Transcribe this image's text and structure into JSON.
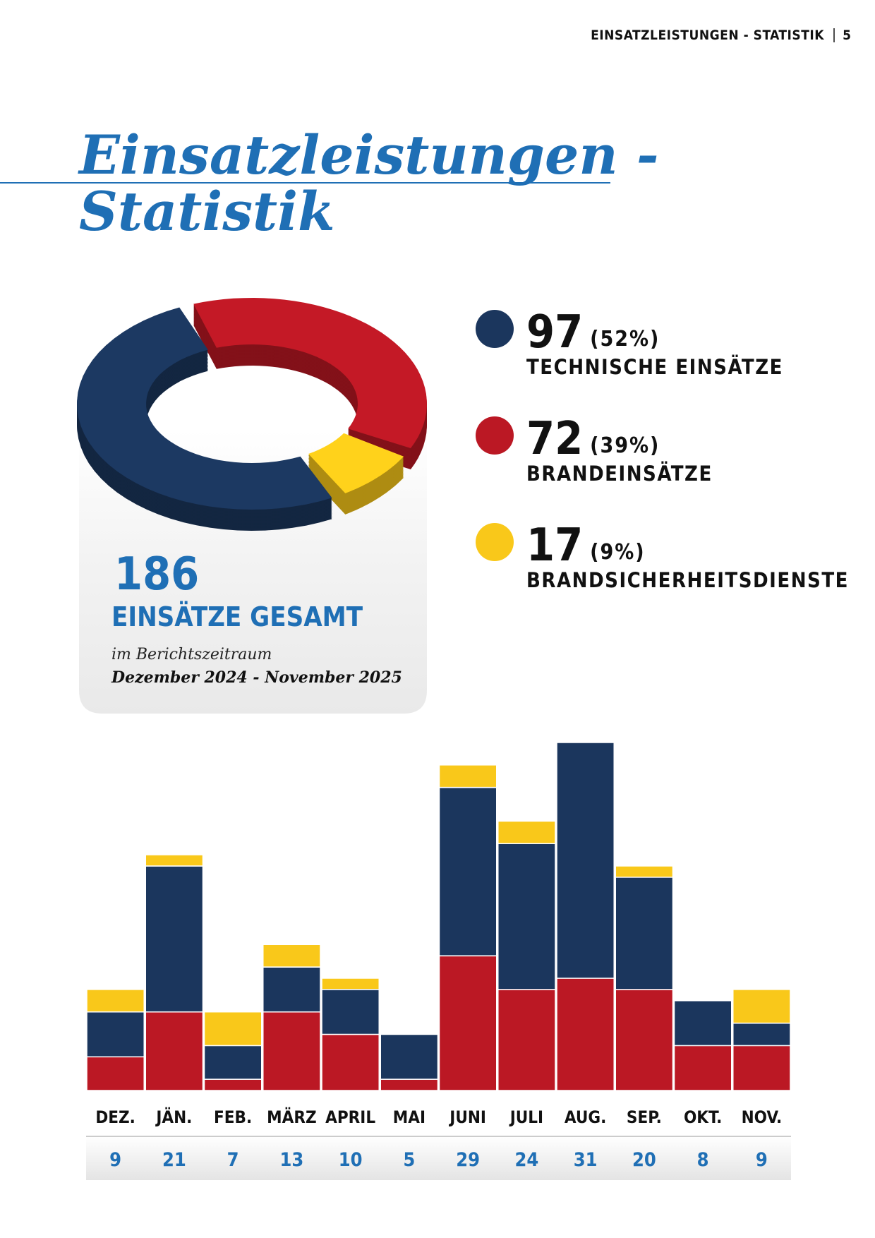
{
  "header": {
    "section": "EINSATZLEISTUNGEN - STATISTIK",
    "page": "5"
  },
  "title_lines": [
    "Einsatzleistungen -",
    "Statistik"
  ],
  "summary": {
    "total": 186,
    "total_label": "EINSÄTZE GESAMT",
    "period_intro": "im Berichtszeitraum",
    "period": "Dezember 2024 - November 2025"
  },
  "chart_data": [
    {
      "type": "donut",
      "categories": [
        "TECHNISCHE EINSÄTZE",
        "BRANDEINSÄTZE",
        "BRANDSICHERHEITSDIENSTE"
      ],
      "values": [
        97,
        72,
        17
      ],
      "percent_labels": [
        "(52%)",
        "(39%)",
        "(9%)"
      ],
      "colors": [
        "#1b365d",
        "#bb1824",
        "#f9c81a"
      ]
    },
    {
      "type": "stacked-bar",
      "categories": [
        "DEZ.",
        "JÄN.",
        "FEB.",
        "MÄRZ",
        "APRIL",
        "MAI",
        "JUNI",
        "JULI",
        "AUG.",
        "SEP.",
        "OKT.",
        "NOV."
      ],
      "series": [
        {
          "color": "#bb1824",
          "values": [
            3,
            7,
            1,
            7,
            5,
            1,
            12,
            9,
            10,
            9,
            4,
            4
          ]
        },
        {
          "color": "#1b365d",
          "values": [
            4,
            13,
            3,
            4,
            4,
            4,
            15,
            13,
            21,
            10,
            4,
            2
          ]
        },
        {
          "color": "#f9c81a",
          "values": [
            2,
            1,
            3,
            2,
            1,
            0,
            2,
            2,
            0,
            1,
            0,
            3
          ]
        }
      ],
      "totals": [
        9,
        21,
        7,
        13,
        10,
        5,
        29,
        24,
        31,
        20,
        8,
        9
      ],
      "ylim": [
        0,
        31
      ]
    }
  ]
}
